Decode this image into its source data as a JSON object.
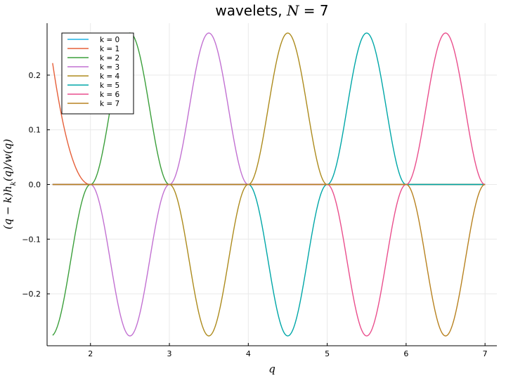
{
  "chart_data": {
    "type": "line",
    "title": "wavelets, N = 7",
    "xlabel": "q",
    "ylabel": "(q − k)h_k(q)/w(q)",
    "xlim": [
      1.45,
      7.15
    ],
    "ylim": [
      -0.295,
      0.295
    ],
    "xticks": [
      2,
      3,
      4,
      5,
      6,
      7
    ],
    "xtick_labels": [
      "2",
      "3",
      "4",
      "5",
      "6",
      "7"
    ],
    "yticks": [
      -0.2,
      -0.1,
      0.0,
      0.1,
      0.2
    ],
    "ytick_labels": [
      "−0.2",
      "−0.1",
      "0.0",
      "0.1",
      "0.2"
    ],
    "grid": true,
    "legend_position": "top-left",
    "amplitude": 0.277,
    "x_domain": [
      1.52,
      7.0
    ],
    "series": [
      {
        "name": "k = 0",
        "color": "#1fb3e6",
        "shape": "flat",
        "segments": []
      },
      {
        "name": "k = 1",
        "color": "#e6603a",
        "shape": "falling-edge",
        "segments": [
          {
            "from": 1.52,
            "to": 2.0,
            "sign": 1
          }
        ]
      },
      {
        "name": "k = 2",
        "color": "#3b9f3b",
        "shape": "wavelet",
        "segments": [
          {
            "from": 1.52,
            "to": 2.0,
            "sign": -1
          },
          {
            "from": 2.0,
            "to": 3.0,
            "sign": 1
          }
        ]
      },
      {
        "name": "k = 3",
        "color": "#c271d2",
        "shape": "wavelet",
        "segments": [
          {
            "from": 2.0,
            "to": 3.0,
            "sign": -1
          },
          {
            "from": 3.0,
            "to": 4.0,
            "sign": 1
          }
        ]
      },
      {
        "name": "k = 4",
        "color": "#ad8b1d",
        "shape": "wavelet",
        "segments": [
          {
            "from": 3.0,
            "to": 4.0,
            "sign": -1
          },
          {
            "from": 4.0,
            "to": 5.0,
            "sign": 1
          }
        ]
      },
      {
        "name": "k = 5",
        "color": "#00a7a8",
        "shape": "wavelet",
        "segments": [
          {
            "from": 4.0,
            "to": 5.0,
            "sign": -1
          },
          {
            "from": 5.0,
            "to": 6.0,
            "sign": 1
          }
        ]
      },
      {
        "name": "k = 6",
        "color": "#ea4f8d",
        "shape": "wavelet",
        "segments": [
          {
            "from": 5.0,
            "to": 6.0,
            "sign": -1
          },
          {
            "from": 6.0,
            "to": 7.0,
            "sign": 1
          }
        ]
      },
      {
        "name": "k = 7",
        "color": "#b88220",
        "shape": "wavelet",
        "segments": [
          {
            "from": 6.0,
            "to": 7.0,
            "sign": -1
          }
        ]
      }
    ]
  }
}
